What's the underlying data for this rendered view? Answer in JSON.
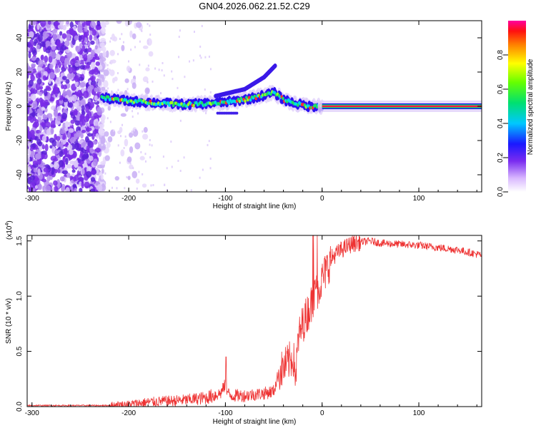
{
  "title": "GN04.2026.062.21.52.C29",
  "chart_data": [
    {
      "type": "heatmap",
      "xlabel": "Height of straight line (km)",
      "ylabel": "Frequency (Hz)",
      "xlim": [
        -305,
        165
      ],
      "ylim": [
        -50,
        50
      ],
      "xticks": [
        -300,
        -200,
        -100,
        0,
        100
      ],
      "yticks": [
        -40,
        -20,
        0,
        20,
        40
      ],
      "colorbar": {
        "label": "Normalized spectral amplitude",
        "range": [
          0,
          1
        ],
        "ticks": [
          "0.0",
          "0.2",
          "0.4",
          "0.6",
          "0.8"
        ],
        "tick_values": [
          0,
          0.2,
          0.4,
          0.6,
          0.8
        ]
      },
      "features": {
        "noise_region_km": [
          -305,
          -225
        ],
        "ridge_segments": [
          {
            "x": -228,
            "y": 5
          },
          {
            "x": -200,
            "y": 3
          },
          {
            "x": -170,
            "y": 2
          },
          {
            "x": -140,
            "y": 1
          },
          {
            "x": -110,
            "y": 2
          },
          {
            "x": -90,
            "y": 3
          },
          {
            "x": -70,
            "y": 5
          },
          {
            "x": -50,
            "y": 8
          },
          {
            "x": -40,
            "y": 4
          },
          {
            "x": -30,
            "y": 2
          },
          {
            "x": -15,
            "y": 0
          },
          {
            "x": 0,
            "y": 0
          },
          {
            "x": 165,
            "y": 0
          }
        ],
        "upper_branch": [
          {
            "x": -110,
            "y": 6
          },
          {
            "x": -80,
            "y": 10
          },
          {
            "x": -60,
            "y": 17
          },
          {
            "x": -48,
            "y": 24
          }
        ]
      }
    },
    {
      "type": "line",
      "xlabel": "Height of straight line (km)",
      "ylabel": "SNR (10 * v/v)",
      "multiplier": "(x10",
      "multiplier_exp": "4",
      "multiplier_close": ")",
      "xlim": [
        -305,
        165
      ],
      "ylim": [
        0,
        1.55
      ],
      "xticks": [
        -300,
        -200,
        -100,
        0,
        100
      ],
      "yticks": [
        "0.0",
        "0.5",
        "1.0",
        "1.5"
      ],
      "ytick_values": [
        0,
        0.5,
        1.0,
        1.5
      ],
      "color": "#ee3333",
      "series": [
        {
          "x": [
            -305,
            -280,
            -250,
            -220,
            -200,
            -180,
            -160,
            -140,
            -120,
            -105,
            -100,
            -96,
            -90,
            -80,
            -70,
            -60,
            -50,
            -45,
            -40,
            -35,
            -30,
            -27,
            -25,
            -20,
            -15,
            -10,
            -5,
            0,
            5,
            10,
            20,
            30,
            40,
            50,
            60,
            80,
            100,
            120,
            140,
            165
          ],
          "y": [
            0.01,
            0.01,
            0.01,
            0.01,
            0.02,
            0.04,
            0.05,
            0.06,
            0.08,
            0.12,
            0.2,
            0.1,
            0.1,
            0.1,
            0.11,
            0.12,
            0.14,
            0.3,
            0.35,
            0.4,
            0.45,
            0.28,
            0.6,
            0.75,
            0.85,
            0.95,
            1.05,
            1.15,
            1.25,
            1.35,
            1.42,
            1.47,
            1.49,
            1.5,
            1.48,
            1.47,
            1.46,
            1.44,
            1.42,
            1.37
          ]
        }
      ]
    }
  ]
}
